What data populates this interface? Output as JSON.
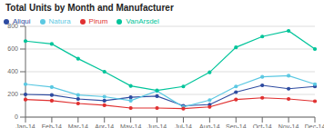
{
  "chart_data": {
    "type": "line",
    "title": "Total Units by Month and Manufacturer",
    "categories": [
      "Jan-14",
      "Feb-14",
      "Mar-14",
      "Apr-14",
      "May-14",
      "Jun-14",
      "Jul-14",
      "Aug-14",
      "Sep-14",
      "Oct-14",
      "Nov-14",
      "Dec-14"
    ],
    "series": [
      {
        "name": "Aliqui",
        "color": "#2E4BA0",
        "values": [
          200,
          195,
          160,
          145,
          175,
          185,
          100,
          110,
          220,
          280,
          250,
          270
        ]
      },
      {
        "name": "Natura",
        "color": "#5BC8E2",
        "values": [
          290,
          265,
          195,
          180,
          145,
          230,
          90,
          150,
          270,
          355,
          365,
          290
        ]
      },
      {
        "name": "Pirum",
        "color": "#E03030",
        "values": [
          155,
          145,
          120,
          105,
          80,
          80,
          75,
          90,
          155,
          170,
          160,
          140
        ]
      },
      {
        "name": "VanArsdel",
        "color": "#00C49A",
        "values": [
          670,
          645,
          515,
          400,
          275,
          235,
          270,
          395,
          615,
          710,
          760,
          600
        ]
      }
    ],
    "ylim": [
      0,
      800
    ],
    "yticks": [
      0,
      200,
      400,
      600,
      800
    ],
    "grid": true,
    "legend": "upper left",
    "marker": "circle"
  }
}
